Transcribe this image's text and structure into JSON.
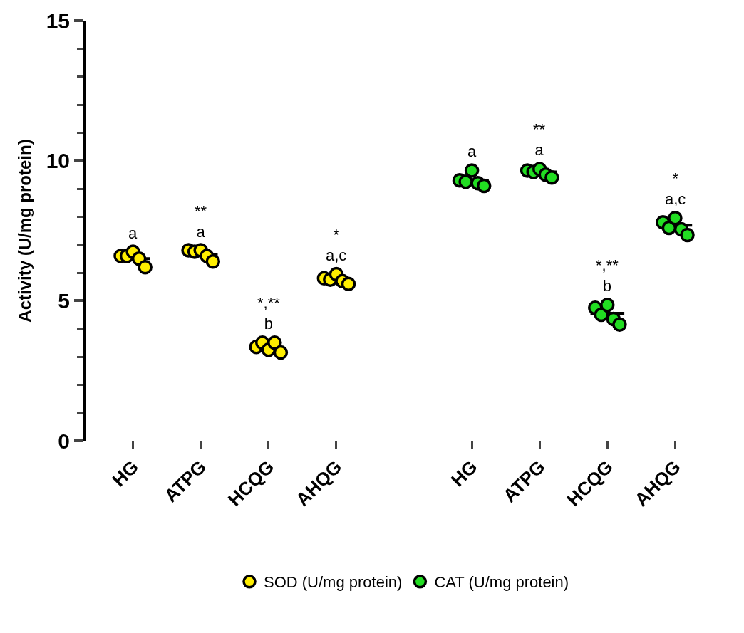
{
  "chart_data": {
    "type": "scatter",
    "ylabel": "Activity (U/mg protein)",
    "categories": [
      "HG",
      "ATPG",
      "HCQG",
      "AHQG",
      null,
      "HG",
      "ATPG",
      "HCQG",
      "AHQG"
    ],
    "ylim": [
      0,
      15
    ],
    "yticks": [
      0,
      5,
      10,
      15
    ],
    "grid": false,
    "legend": "bottom",
    "marker": "circle",
    "series": [
      {
        "name": "SOD (U/mg protein)",
        "color": "#ffee00",
        "values": [
          6.6,
          6.8,
          3.35,
          5.8,
          null,
          null,
          null,
          null,
          null
        ],
        "value_labels": [
          "a",
          "**\na",
          "*,**\nb",
          "*\na,c",
          null,
          null,
          null,
          null,
          null
        ]
      },
      {
        "color": "#ffee00",
        "values": [
          6.6,
          6.75,
          3.5,
          5.75,
          null,
          null,
          null,
          null,
          null
        ]
      },
      {
        "color": "#ffee00",
        "values": [
          6.75,
          6.8,
          3.25,
          5.95,
          null,
          null,
          null,
          null,
          null
        ]
      },
      {
        "color": "#ffee00",
        "values": [
          6.5,
          6.6,
          3.5,
          5.7,
          null,
          null,
          null,
          null,
          null
        ]
      },
      {
        "color": "#ffee00",
        "values": [
          6.2,
          6.4,
          3.15,
          5.6,
          null,
          null,
          null,
          null,
          null
        ]
      },
      {
        "name": "CAT (U/mg protein)",
        "color": "#22dd22",
        "values": [
          null,
          null,
          null,
          null,
          null,
          9.3,
          9.65,
          4.75,
          7.8
        ],
        "value_labels": [
          null,
          null,
          null,
          null,
          null,
          "a",
          "**\na",
          "*,**\nb",
          "*\na,c"
        ]
      },
      {
        "color": "#22dd22",
        "values": [
          null,
          null,
          null,
          null,
          null,
          9.25,
          9.6,
          4.5,
          7.6
        ]
      },
      {
        "color": "#22dd22",
        "values": [
          null,
          null,
          null,
          null,
          null,
          9.65,
          9.7,
          4.85,
          7.95
        ]
      },
      {
        "color": "#22dd22",
        "values": [
          null,
          null,
          null,
          null,
          null,
          9.2,
          9.5,
          4.35,
          7.55
        ]
      },
      {
        "color": "#22dd22",
        "values": [
          null,
          null,
          null,
          null,
          null,
          9.1,
          9.4,
          4.15,
          7.35
        ]
      },
      {
        "type": "box",
        "color": "#000000",
        "boxes": [
          {
            "low": 6.5,
            "q1": 6.5,
            "median": 6.5,
            "q3": 6.5,
            "high": 6.5
          },
          {
            "low": 6.65,
            "q1": 6.65,
            "median": 6.65,
            "q3": 6.65,
            "high": 6.65
          },
          {
            "low": 3.3,
            "q1": 3.3,
            "median": 3.3,
            "q3": 3.3,
            "high": 3.3
          },
          {
            "low": 5.75,
            "q1": 5.75,
            "median": 5.75,
            "q3": 5.75,
            "high": 5.75
          },
          null,
          {
            "low": 9.3,
            "q1": 9.3,
            "median": 9.3,
            "q3": 9.3,
            "high": 9.3
          },
          {
            "low": 9.6,
            "q1": 9.6,
            "median": 9.6,
            "q3": 9.6,
            "high": 9.6
          },
          {
            "low": 4.55,
            "q1": 4.55,
            "median": 4.55,
            "q3": 4.55,
            "high": 4.55
          },
          {
            "low": 7.7,
            "q1": 7.7,
            "median": 7.7,
            "q3": 7.7,
            "high": 7.7
          }
        ]
      }
    ]
  }
}
